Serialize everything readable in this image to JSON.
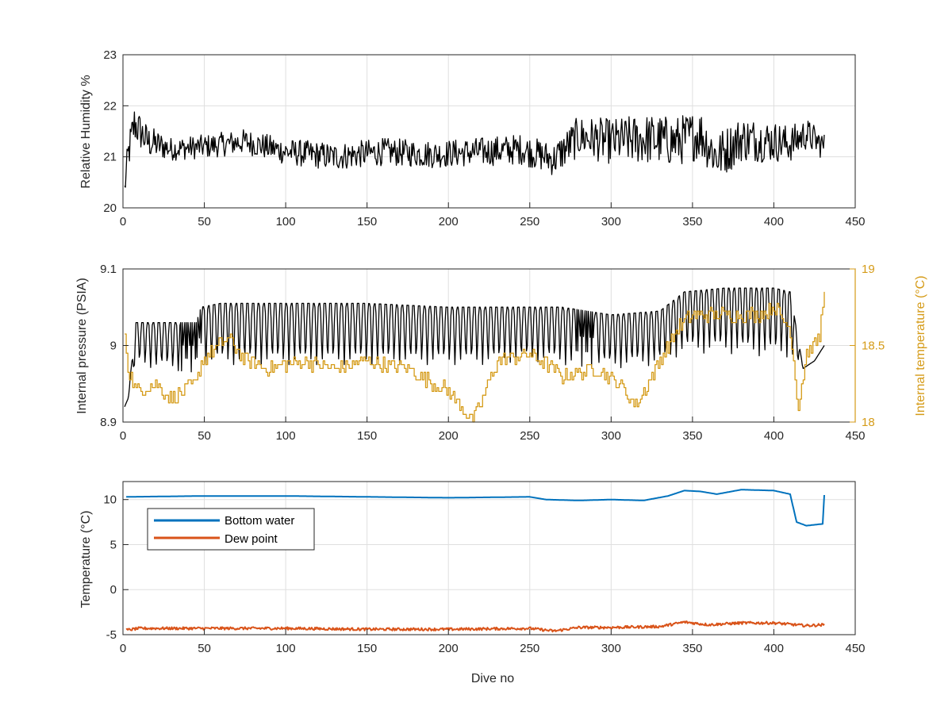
{
  "chart_data": [
    {
      "type": "line",
      "xlabel": "",
      "ylabel": "Relative Humidity %",
      "xlim": [
        0,
        450
      ],
      "ylim": [
        20,
        23
      ],
      "xticks": [
        "0",
        "50",
        "100",
        "150",
        "200",
        "250",
        "300",
        "350",
        "400",
        "450"
      ],
      "yticks": [
        "20",
        "21",
        "22",
        "23"
      ],
      "grid": true,
      "series": [
        {
          "color": "#000000",
          "style": "oscillating",
          "amp_key": [
            [
              0,
              0.25
            ],
            [
              5,
              0.45
            ],
            [
              30,
              0.25
            ],
            [
              120,
              0.3
            ],
            [
              200,
              0.3
            ],
            [
              260,
              0.35
            ],
            [
              280,
              0.45
            ],
            [
              320,
              0.55
            ],
            [
              360,
              0.55
            ],
            [
              400,
              0.45
            ],
            [
              430,
              0.3
            ]
          ],
          "x": [
            1,
            3,
            7,
            15,
            30,
            50,
            75,
            100,
            130,
            160,
            190,
            220,
            245,
            265,
            280,
            300,
            320,
            340,
            355,
            365,
            380,
            400,
            410,
            420,
            431
          ],
          "y": [
            20.35,
            21.0,
            21.65,
            21.3,
            21.15,
            21.2,
            21.3,
            21.1,
            21.0,
            21.1,
            21.05,
            21.1,
            21.15,
            20.95,
            21.4,
            21.3,
            21.35,
            21.3,
            21.45,
            21.0,
            21.35,
            21.3,
            21.25,
            21.45,
            21.2
          ]
        }
      ]
    },
    {
      "type": "line",
      "xlabel": "",
      "ylabel": "Internal pressure (PSIA)",
      "ylabel_right": "Internal temperature (°C)",
      "xlim": [
        0,
        450
      ],
      "ylim": [
        8.9,
        9.1
      ],
      "ylim_right": [
        18,
        19
      ],
      "xticks": [
        "0",
        "50",
        "100",
        "150",
        "200",
        "250",
        "300",
        "350",
        "400",
        "450"
      ],
      "yticks": [
        "8.9",
        "9",
        "9.1"
      ],
      "yticks_right": [
        "18",
        "18.5",
        "19"
      ],
      "grid": true,
      "series": [
        {
          "color": "#000000",
          "axis": "left",
          "style": "sawtooth",
          "x": [
            1,
            3,
            8,
            20,
            45,
            48,
            60,
            100,
            150,
            200,
            220,
            250,
            270,
            300,
            330,
            345,
            370,
            400,
            410,
            418,
            425,
            431
          ],
          "top": [
            8.92,
            8.93,
            9.03,
            9.03,
            9.03,
            9.05,
            9.055,
            9.055,
            9.055,
            9.05,
            9.05,
            9.05,
            9.05,
            9.04,
            9.045,
            9.07,
            9.075,
            9.075,
            9.07,
            8.97,
            8.98,
            9.0
          ],
          "bottom": [
            8.92,
            8.93,
            8.975,
            8.97,
            8.965,
            8.975,
            8.975,
            8.975,
            8.975,
            8.975,
            8.975,
            8.98,
            8.975,
            8.97,
            8.975,
            8.99,
            8.99,
            8.985,
            8.985,
            8.97,
            8.98,
            9.0
          ]
        },
        {
          "color": "#D59B18",
          "axis": "right",
          "style": "stepped",
          "x": [
            1,
            3,
            8,
            20,
            30,
            45,
            48,
            65,
            75,
            90,
            110,
            130,
            150,
            175,
            200,
            215,
            230,
            250,
            270,
            290,
            305,
            315,
            325,
            340,
            350,
            370,
            390,
            400,
            410,
            415,
            420,
            428,
            431
          ],
          "y": [
            18.6,
            18.35,
            18.2,
            18.25,
            18.15,
            18.25,
            18.4,
            18.55,
            18.4,
            18.35,
            18.4,
            18.35,
            18.4,
            18.35,
            18.2,
            18.0,
            18.4,
            18.45,
            18.3,
            18.35,
            18.25,
            18.1,
            18.3,
            18.6,
            18.7,
            18.7,
            18.7,
            18.75,
            18.6,
            18.1,
            18.45,
            18.55,
            18.9
          ]
        }
      ]
    },
    {
      "type": "line",
      "xlabel": "Dive no",
      "ylabel": "Temperature (°C)",
      "xlim": [
        0,
        450
      ],
      "ylim": [
        -5,
        12
      ],
      "xticks": [
        "0",
        "50",
        "100",
        "150",
        "200",
        "250",
        "300",
        "350",
        "400",
        "450"
      ],
      "yticks": [
        "-5",
        "0",
        "5",
        "10"
      ],
      "grid": true,
      "legend_position": "upper-left",
      "series": [
        {
          "name": "Bottom water",
          "color": "#0072BD",
          "x": [
            2,
            50,
            100,
            150,
            200,
            250,
            260,
            280,
            300,
            320,
            335,
            345,
            355,
            365,
            380,
            400,
            410,
            414,
            420,
            425,
            430,
            431
          ],
          "y": [
            10.3,
            10.4,
            10.4,
            10.3,
            10.2,
            10.3,
            10.0,
            9.9,
            10.0,
            9.9,
            10.4,
            11.0,
            10.9,
            10.6,
            11.1,
            11.0,
            10.6,
            7.5,
            7.1,
            7.2,
            7.3,
            10.5
          ]
        },
        {
          "name": "Dew point",
          "color": "#D95319",
          "noise": 0.15,
          "x": [
            2,
            10,
            50,
            100,
            150,
            200,
            250,
            265,
            280,
            300,
            330,
            345,
            360,
            380,
            400,
            420,
            431
          ],
          "y": [
            -4.5,
            -4.3,
            -4.3,
            -4.3,
            -4.4,
            -4.4,
            -4.3,
            -4.6,
            -4.2,
            -4.2,
            -4.1,
            -3.6,
            -3.9,
            -3.7,
            -3.7,
            -4.0,
            -3.9
          ]
        }
      ]
    }
  ]
}
